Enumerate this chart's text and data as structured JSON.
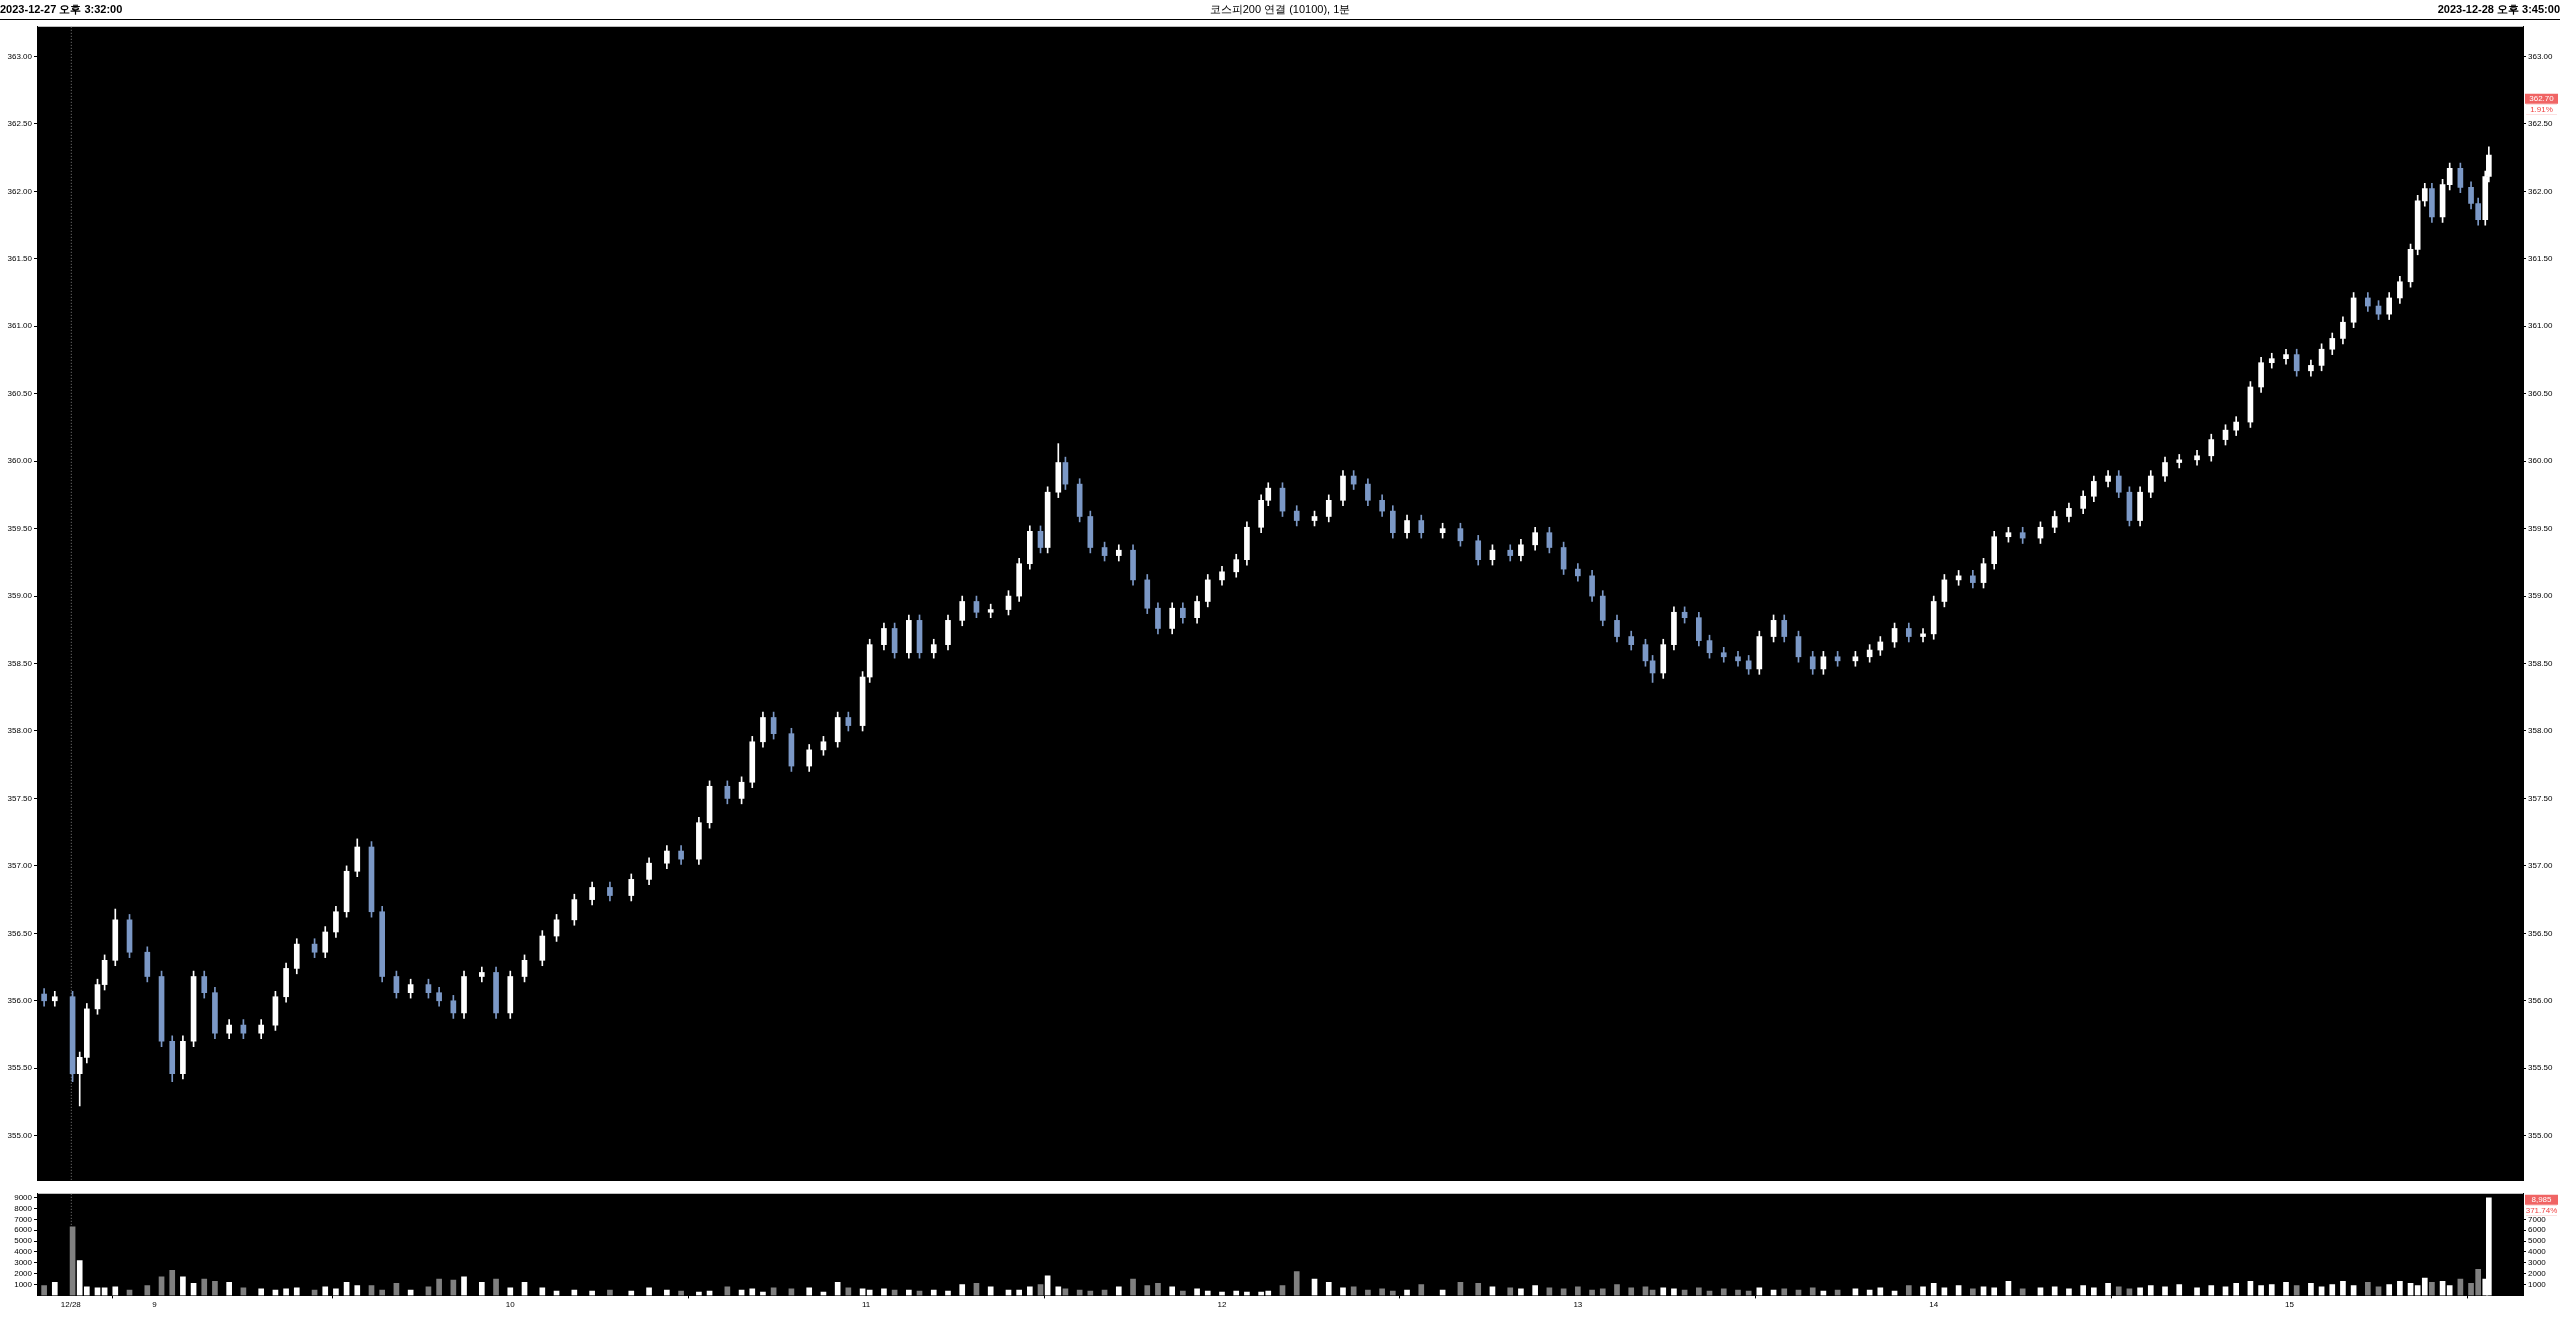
{
  "chart_data": [
    {
      "type": "candlestick",
      "title": "코스피200 연결 (10100), 1분",
      "annotations": [
        "2023-12-27 오후 3:32:00",
        "2023-12-28 오후 3:45:00",
        "362.70",
        "1.91%"
      ],
      "xlim": [
        8.67,
        15.656
      ],
      "ylim": [
        354.67,
        363.22
      ],
      "y2lim": [
        354.67,
        363.22
      ],
      "tick_labels": "y",
      "grid": false,
      "yticks": [
        {
          "value": 355,
          "label": "355.00"
        },
        {
          "value": 355.5,
          "label": "355.50"
        },
        {
          "value": 356,
          "label": "356.00"
        },
        {
          "value": 356.5,
          "label": "356.50"
        },
        {
          "value": 357,
          "label": "357.00"
        },
        {
          "value": 357.5,
          "label": "357.50"
        },
        {
          "value": 358,
          "label": "358.00"
        },
        {
          "value": 358.5,
          "label": "358.50"
        },
        {
          "value": 359,
          "label": "359.00"
        },
        {
          "value": 359.5,
          "label": "359.50"
        },
        {
          "value": 360,
          "label": "360.00"
        },
        {
          "value": 360.5,
          "label": "360.50"
        },
        {
          "value": 361,
          "label": "361.00"
        },
        {
          "value": 361.5,
          "label": "361.50"
        },
        {
          "value": 362,
          "label": "362.00"
        },
        {
          "value": 362.5,
          "label": "362.50"
        },
        {
          "value": 363,
          "label": "363.00"
        }
      ],
      "y2ticks": [
        {
          "value": 355,
          "label": "355.00"
        },
        {
          "value": 355.5,
          "label": "355.50"
        },
        {
          "value": 356,
          "label": "356.00"
        },
        {
          "value": 356.5,
          "label": "356.50"
        },
        {
          "value": 357,
          "label": "357.00"
        },
        {
          "value": 357.5,
          "label": "357.50"
        },
        {
          "value": 358,
          "label": "358.00"
        },
        {
          "value": 358.5,
          "label": "358.50"
        },
        {
          "value": 359,
          "label": "359.00"
        },
        {
          "value": 359.5,
          "label": "359.50"
        },
        {
          "value": 360,
          "label": "360.00"
        },
        {
          "value": 360.5,
          "label": "360.50"
        },
        {
          "value": 361,
          "label": "361.00"
        },
        {
          "value": 361.5,
          "label": "361.50"
        },
        {
          "value": 362,
          "label": "362.00"
        },
        {
          "value": 362.5,
          "label": "362.50"
        },
        {
          "value": 363,
          "label": "363.00"
        }
      ],
      "ref_lines": [
        {
          "axis": "x",
          "value": 8.765,
          "line_style": "dotted",
          "color": "#808080"
        }
      ],
      "x": [
        8.69,
        8.72,
        8.77,
        8.79,
        8.81,
        8.84,
        8.86,
        8.89,
        8.93,
        8.98,
        9.02,
        9.05,
        9.08,
        9.11,
        9.14,
        9.17,
        9.21,
        9.25,
        9.3,
        9.34,
        9.37,
        9.4,
        9.45,
        9.48,
        9.51,
        9.54,
        9.57,
        9.61,
        9.64,
        9.68,
        9.72,
        9.77,
        9.8,
        9.84,
        9.87,
        9.92,
        9.96,
        10.0,
        10.04,
        10.09,
        10.13,
        10.18,
        10.23,
        10.28,
        10.34,
        10.39,
        10.44,
        10.48,
        10.53,
        10.56,
        10.61,
        10.65,
        10.68,
        10.71,
        10.74,
        10.79,
        10.84,
        10.88,
        10.92,
        10.95,
        10.99,
        11.01,
        11.05,
        11.08,
        11.12,
        11.15,
        11.19,
        11.23,
        11.27,
        11.31,
        11.35,
        11.4,
        11.43,
        11.46,
        11.49,
        11.51,
        11.54,
        11.56,
        11.6,
        11.63,
        11.67,
        11.71,
        11.75,
        11.79,
        11.82,
        11.86,
        11.89,
        11.93,
        11.96,
        12.0,
        12.04,
        12.07,
        12.11,
        12.13,
        12.17,
        12.21,
        12.26,
        12.3,
        12.34,
        12.37,
        12.41,
        12.45,
        12.48,
        12.52,
        12.56,
        12.62,
        12.67,
        12.72,
        12.76,
        12.81,
        12.84,
        12.88,
        12.92,
        12.96,
        13.0,
        13.04,
        13.07,
        13.11,
        13.15,
        13.19,
        13.21,
        13.24,
        13.27,
        13.3,
        13.34,
        13.37,
        13.41,
        13.45,
        13.48,
        13.51,
        13.55,
        13.58,
        13.62,
        13.66,
        13.69,
        13.73,
        13.78,
        13.82,
        13.85,
        13.89,
        13.93,
        13.97,
        14.0,
        14.03,
        14.07,
        14.11,
        14.14,
        14.17,
        14.21,
        14.25,
        14.3,
        14.34,
        14.38,
        14.42,
        14.45,
        14.49,
        14.52,
        14.55,
        14.58,
        14.61,
        14.65,
        14.69,
        14.74,
        14.78,
        14.82,
        14.85,
        14.89,
        14.92,
        14.95,
        14.99,
        15.02,
        15.06,
        15.09,
        15.12,
        15.15,
        15.18,
        15.22,
        15.25,
        15.28,
        15.31,
        15.34,
        15.36,
        15.38,
        15.4,
        15.43,
        15.45,
        15.48,
        15.51,
        15.53,
        15.55,
        15.56
      ],
      "ohlc": [
        [
          356.05,
          356.09,
          355.96,
          356.0
        ],
        [
          356.0,
          356.07,
          355.96,
          356.03
        ],
        [
          356.03,
          356.07,
          355.4,
          355.46
        ],
        [
          355.46,
          355.62,
          355.22,
          355.58
        ],
        [
          355.58,
          355.98,
          355.54,
          355.94
        ],
        [
          355.94,
          356.16,
          355.9,
          356.12
        ],
        [
          356.12,
          356.34,
          356.08,
          356.3
        ],
        [
          356.3,
          356.68,
          356.26,
          356.6
        ],
        [
          356.6,
          356.64,
          356.32,
          356.36
        ],
        [
          356.36,
          356.4,
          356.14,
          356.18
        ],
        [
          356.18,
          356.22,
          355.66,
          355.7
        ],
        [
          355.7,
          355.74,
          355.4,
          355.46
        ],
        [
          355.46,
          355.74,
          355.42,
          355.7
        ],
        [
          355.7,
          356.22,
          355.66,
          356.18
        ],
        [
          356.18,
          356.22,
          356.02,
          356.06
        ],
        [
          356.06,
          356.1,
          355.72,
          355.76
        ],
        [
          355.76,
          355.86,
          355.72,
          355.82
        ],
        [
          355.82,
          355.86,
          355.72,
          355.76
        ],
        [
          355.76,
          355.86,
          355.72,
          355.82
        ],
        [
          355.82,
          356.07,
          355.78,
          356.03
        ],
        [
          356.03,
          356.28,
          355.99,
          356.24
        ],
        [
          356.24,
          356.46,
          356.2,
          356.42
        ],
        [
          356.42,
          356.46,
          356.32,
          356.36
        ],
        [
          356.36,
          356.55,
          356.32,
          356.51
        ],
        [
          356.51,
          356.7,
          356.47,
          356.66
        ],
        [
          356.66,
          357.0,
          356.62,
          356.96
        ],
        [
          356.96,
          357.2,
          356.92,
          357.14
        ],
        [
          357.14,
          357.18,
          356.62,
          356.66
        ],
        [
          356.66,
          356.7,
          356.14,
          356.18
        ],
        [
          356.18,
          356.22,
          356.02,
          356.06
        ],
        [
          356.06,
          356.16,
          356.02,
          356.12
        ],
        [
          356.12,
          356.16,
          356.02,
          356.06
        ],
        [
          356.06,
          356.1,
          355.96,
          356.0
        ],
        [
          356.0,
          356.04,
          355.87,
          355.91
        ],
        [
          355.91,
          356.22,
          355.87,
          356.18
        ],
        [
          356.18,
          356.25,
          356.14,
          356.21
        ],
        [
          356.21,
          356.25,
          355.87,
          355.91
        ],
        [
          355.91,
          356.22,
          355.87,
          356.18
        ],
        [
          356.18,
          356.34,
          356.14,
          356.3
        ],
        [
          356.3,
          356.52,
          356.26,
          356.48
        ],
        [
          356.48,
          356.64,
          356.44,
          356.6
        ],
        [
          356.6,
          356.79,
          356.56,
          356.75
        ],
        [
          356.75,
          356.88,
          356.71,
          356.84
        ],
        [
          356.84,
          356.88,
          356.74,
          356.78
        ],
        [
          356.78,
          356.94,
          356.74,
          356.9
        ],
        [
          356.9,
          357.06,
          356.86,
          357.02
        ],
        [
          357.02,
          357.15,
          356.98,
          357.11
        ],
        [
          357.11,
          357.15,
          357.01,
          357.05
        ],
        [
          357.05,
          357.36,
          357.01,
          357.32
        ],
        [
          357.32,
          357.63,
          357.28,
          357.59
        ],
        [
          357.59,
          357.63,
          357.46,
          357.5
        ],
        [
          357.5,
          357.66,
          357.46,
          357.62
        ],
        [
          357.62,
          357.96,
          357.58,
          357.92
        ],
        [
          357.92,
          358.14,
          357.88,
          358.1
        ],
        [
          358.1,
          358.14,
          357.94,
          357.98
        ],
        [
          357.98,
          358.02,
          357.7,
          357.74
        ],
        [
          357.74,
          357.9,
          357.7,
          357.86
        ],
        [
          357.86,
          357.96,
          357.82,
          357.92
        ],
        [
          357.92,
          358.14,
          357.88,
          358.1
        ],
        [
          358.1,
          358.14,
          358.0,
          358.04
        ],
        [
          358.04,
          358.44,
          358.0,
          358.4
        ],
        [
          358.4,
          358.68,
          358.36,
          358.64
        ],
        [
          358.64,
          358.8,
          358.6,
          358.76
        ],
        [
          358.76,
          358.8,
          358.54,
          358.58
        ],
        [
          358.58,
          358.86,
          358.54,
          358.82
        ],
        [
          358.82,
          358.86,
          358.54,
          358.58
        ],
        [
          358.58,
          358.68,
          358.54,
          358.64
        ],
        [
          358.64,
          358.86,
          358.6,
          358.82
        ],
        [
          358.82,
          359.0,
          358.78,
          358.96
        ],
        [
          358.96,
          359.0,
          358.84,
          358.88
        ],
        [
          358.88,
          358.94,
          358.84,
          358.9
        ],
        [
          358.9,
          359.04,
          358.86,
          359.0
        ],
        [
          359.0,
          359.28,
          358.96,
          359.24
        ],
        [
          359.24,
          359.52,
          359.2,
          359.48
        ],
        [
          359.48,
          359.52,
          359.32,
          359.36
        ],
        [
          359.36,
          359.81,
          359.32,
          359.77
        ],
        [
          359.77,
          360.13,
          359.73,
          359.99
        ],
        [
          359.99,
          360.03,
          359.79,
          359.83
        ],
        [
          359.83,
          359.87,
          359.55,
          359.59
        ],
        [
          359.59,
          359.63,
          359.32,
          359.36
        ],
        [
          359.36,
          359.4,
          359.26,
          359.3
        ],
        [
          359.3,
          359.38,
          359.26,
          359.34
        ],
        [
          359.34,
          359.38,
          359.08,
          359.12
        ],
        [
          359.12,
          359.16,
          358.87,
          358.91
        ],
        [
          358.91,
          358.95,
          358.72,
          358.76
        ],
        [
          358.76,
          358.95,
          358.72,
          358.91
        ],
        [
          358.91,
          358.95,
          358.8,
          358.84
        ],
        [
          358.84,
          359.0,
          358.8,
          358.96
        ],
        [
          358.96,
          359.16,
          358.92,
          359.12
        ],
        [
          359.12,
          359.22,
          359.08,
          359.18
        ],
        [
          359.18,
          359.31,
          359.14,
          359.27
        ],
        [
          359.27,
          359.55,
          359.23,
          359.51
        ],
        [
          359.51,
          359.75,
          359.47,
          359.71
        ],
        [
          359.71,
          359.84,
          359.67,
          359.8
        ],
        [
          359.8,
          359.84,
          359.59,
          359.63
        ],
        [
          359.63,
          359.67,
          359.52,
          359.56
        ],
        [
          359.56,
          359.63,
          359.52,
          359.59
        ],
        [
          359.59,
          359.75,
          359.55,
          359.71
        ],
        [
          359.71,
          359.93,
          359.67,
          359.89
        ],
        [
          359.89,
          359.93,
          359.79,
          359.83
        ],
        [
          359.83,
          359.87,
          359.67,
          359.71
        ],
        [
          359.71,
          359.75,
          359.59,
          359.63
        ],
        [
          359.63,
          359.67,
          359.43,
          359.47
        ],
        [
          359.47,
          359.6,
          359.43,
          359.56
        ],
        [
          359.56,
          359.6,
          359.43,
          359.47
        ],
        [
          359.47,
          359.54,
          359.43,
          359.5
        ],
        [
          359.5,
          359.54,
          359.37,
          359.41
        ],
        [
          359.41,
          359.45,
          359.23,
          359.27
        ],
        [
          359.27,
          359.38,
          359.23,
          359.34
        ],
        [
          359.34,
          359.38,
          359.26,
          359.3
        ],
        [
          359.3,
          359.42,
          359.26,
          359.38
        ],
        [
          359.38,
          359.51,
          359.34,
          359.47
        ],
        [
          359.47,
          359.51,
          359.32,
          359.36
        ],
        [
          359.36,
          359.4,
          359.16,
          359.2
        ],
        [
          359.2,
          359.24,
          359.11,
          359.15
        ],
        [
          359.15,
          359.19,
          358.96,
          359.0
        ],
        [
          359.0,
          359.04,
          358.78,
          358.82
        ],
        [
          358.82,
          358.86,
          358.66,
          358.7
        ],
        [
          358.7,
          358.74,
          358.6,
          358.64
        ],
        [
          358.64,
          358.68,
          358.48,
          358.52
        ],
        [
          358.52,
          358.56,
          358.36,
          358.43
        ],
        [
          358.43,
          358.68,
          358.39,
          358.64
        ],
        [
          358.64,
          358.92,
          358.6,
          358.88
        ],
        [
          358.88,
          358.92,
          358.8,
          358.84
        ],
        [
          358.84,
          358.88,
          358.63,
          358.67
        ],
        [
          358.67,
          358.71,
          358.54,
          358.58
        ],
        [
          358.58,
          358.62,
          358.51,
          358.55
        ],
        [
          358.55,
          358.59,
          358.48,
          358.52
        ],
        [
          358.52,
          358.56,
          358.42,
          358.46
        ],
        [
          358.46,
          358.74,
          358.42,
          358.7
        ],
        [
          358.7,
          358.86,
          358.66,
          358.82
        ],
        [
          358.82,
          358.86,
          358.66,
          358.7
        ],
        [
          358.7,
          358.74,
          358.51,
          358.55
        ],
        [
          358.55,
          358.59,
          358.42,
          358.46
        ],
        [
          358.46,
          358.59,
          358.42,
          358.55
        ],
        [
          358.55,
          358.59,
          358.48,
          358.52
        ],
        [
          358.52,
          358.59,
          358.48,
          358.55
        ],
        [
          358.55,
          358.64,
          358.51,
          358.6
        ],
        [
          358.6,
          358.7,
          358.56,
          358.66
        ],
        [
          358.66,
          358.8,
          358.62,
          358.76
        ],
        [
          358.76,
          358.8,
          358.66,
          358.7
        ],
        [
          358.7,
          358.76,
          358.66,
          358.72
        ],
        [
          358.72,
          359.0,
          358.68,
          358.96
        ],
        [
          358.96,
          359.16,
          358.92,
          359.12
        ],
        [
          359.12,
          359.19,
          359.08,
          359.15
        ],
        [
          359.15,
          359.19,
          359.06,
          359.1
        ],
        [
          359.1,
          359.28,
          359.06,
          359.24
        ],
        [
          359.24,
          359.48,
          359.2,
          359.44
        ],
        [
          359.44,
          359.51,
          359.4,
          359.47
        ],
        [
          359.47,
          359.51,
          359.39,
          359.43
        ],
        [
          359.43,
          359.55,
          359.39,
          359.51
        ],
        [
          359.51,
          359.63,
          359.47,
          359.59
        ],
        [
          359.59,
          359.69,
          359.55,
          359.65
        ],
        [
          359.65,
          359.78,
          359.61,
          359.74
        ],
        [
          359.74,
          359.89,
          359.7,
          359.85
        ],
        [
          359.85,
          359.93,
          359.81,
          359.89
        ],
        [
          359.89,
          359.93,
          359.73,
          359.77
        ],
        [
          359.77,
          359.81,
          359.52,
          359.56
        ],
        [
          359.56,
          359.81,
          359.52,
          359.77
        ],
        [
          359.77,
          359.93,
          359.73,
          359.89
        ],
        [
          359.89,
          360.03,
          359.85,
          359.99
        ],
        [
          359.99,
          360.05,
          359.95,
          360.01
        ],
        [
          360.01,
          360.08,
          359.97,
          360.04
        ],
        [
          360.04,
          360.2,
          360.0,
          360.16
        ],
        [
          360.16,
          360.27,
          360.12,
          360.23
        ],
        [
          360.23,
          360.33,
          360.19,
          360.29
        ],
        [
          360.29,
          360.59,
          360.25,
          360.55
        ],
        [
          360.55,
          360.77,
          360.51,
          360.73
        ],
        [
          360.73,
          360.8,
          360.69,
          360.76
        ],
        [
          360.76,
          360.83,
          360.72,
          360.79
        ],
        [
          360.79,
          360.83,
          360.63,
          360.67
        ],
        [
          360.67,
          360.75,
          360.63,
          360.71
        ],
        [
          360.71,
          360.87,
          360.67,
          360.83
        ],
        [
          360.83,
          360.95,
          360.79,
          360.91
        ],
        [
          360.91,
          361.07,
          360.87,
          361.03
        ],
        [
          361.03,
          361.25,
          360.99,
          361.21
        ],
        [
          361.21,
          361.25,
          361.11,
          361.15
        ],
        [
          361.15,
          361.19,
          361.05,
          361.09
        ],
        [
          361.09,
          361.25,
          361.05,
          361.21
        ],
        [
          361.21,
          361.37,
          361.17,
          361.33
        ],
        [
          361.33,
          361.61,
          361.29,
          361.57
        ],
        [
          361.57,
          361.97,
          361.53,
          361.93
        ],
        [
          361.93,
          362.06,
          361.89,
          362.02
        ],
        [
          362.02,
          362.06,
          361.77,
          361.81
        ],
        [
          361.81,
          362.09,
          361.77,
          362.05
        ],
        [
          362.05,
          362.21,
          362.01,
          362.17
        ],
        [
          362.17,
          362.21,
          361.99,
          362.03
        ],
        [
          362.03,
          362.07,
          361.87,
          361.91
        ],
        [
          361.91,
          361.95,
          361.75,
          361.79
        ],
        [
          361.79,
          362.15,
          361.75,
          362.11
        ],
        [
          362.11,
          362.33,
          362.07,
          362.27
        ]
      ],
      "colors": [
        "#7b98c6",
        "#ffffff",
        "#7b98c6",
        "#ffffff",
        "#ffffff",
        "#ffffff",
        "#ffffff",
        "#ffffff",
        "#7b98c6",
        "#7b98c6",
        "#7b98c6",
        "#7b98c6",
        "#ffffff",
        "#ffffff",
        "#7b98c6",
        "#7b98c6",
        "#ffffff",
        "#7b98c6",
        "#ffffff",
        "#ffffff",
        "#ffffff",
        "#ffffff",
        "#7b98c6",
        "#ffffff",
        "#ffffff",
        "#ffffff",
        "#ffffff",
        "#7b98c6",
        "#7b98c6",
        "#7b98c6",
        "#ffffff",
        "#7b98c6",
        "#7b98c6",
        "#7b98c6",
        "#ffffff",
        "#ffffff",
        "#7b98c6",
        "#ffffff",
        "#ffffff",
        "#ffffff",
        "#ffffff",
        "#ffffff",
        "#ffffff",
        "#7b98c6",
        "#ffffff",
        "#ffffff",
        "#ffffff",
        "#7b98c6",
        "#ffffff",
        "#ffffff",
        "#7b98c6",
        "#ffffff",
        "#ffffff",
        "#ffffff",
        "#7b98c6",
        "#7b98c6",
        "#ffffff",
        "#ffffff",
        "#ffffff",
        "#7b98c6",
        "#ffffff",
        "#ffffff",
        "#ffffff",
        "#7b98c6",
        "#ffffff",
        "#7b98c6",
        "#ffffff",
        "#ffffff",
        "#ffffff",
        "#7b98c6",
        "#ffffff",
        "#ffffff",
        "#ffffff",
        "#ffffff",
        "#7b98c6",
        "#ffffff",
        "#ffffff",
        "#7b98c6",
        "#7b98c6",
        "#7b98c6",
        "#7b98c6",
        "#ffffff",
        "#7b98c6",
        "#7b98c6",
        "#7b98c6",
        "#ffffff",
        "#7b98c6",
        "#ffffff",
        "#ffffff",
        "#ffffff",
        "#ffffff",
        "#ffffff",
        "#ffffff",
        "#ffffff",
        "#7b98c6",
        "#7b98c6",
        "#ffffff",
        "#ffffff",
        "#ffffff",
        "#7b98c6",
        "#7b98c6",
        "#7b98c6",
        "#7b98c6",
        "#ffffff",
        "#7b98c6",
        "#ffffff",
        "#7b98c6",
        "#7b98c6",
        "#ffffff",
        "#7b98c6",
        "#ffffff",
        "#ffffff",
        "#7b98c6",
        "#7b98c6",
        "#7b98c6",
        "#7b98c6",
        "#7b98c6",
        "#7b98c6",
        "#7b98c6",
        "#7b98c6",
        "#7b98c6",
        "#ffffff",
        "#ffffff",
        "#7b98c6",
        "#7b98c6",
        "#7b98c6",
        "#7b98c6",
        "#7b98c6",
        "#7b98c6",
        "#ffffff",
        "#ffffff",
        "#7b98c6",
        "#7b98c6",
        "#7b98c6",
        "#ffffff",
        "#7b98c6",
        "#ffffff",
        "#ffffff",
        "#ffffff",
        "#ffffff",
        "#7b98c6",
        "#ffffff",
        "#ffffff",
        "#ffffff",
        "#ffffff",
        "#7b98c6",
        "#ffffff",
        "#ffffff",
        "#ffffff",
        "#7b98c6",
        "#ffffff",
        "#ffffff",
        "#ffffff",
        "#ffffff",
        "#ffffff",
        "#ffffff",
        "#7b98c6",
        "#7b98c6",
        "#ffffff",
        "#ffffff",
        "#ffffff",
        "#ffffff",
        "#ffffff",
        "#ffffff",
        "#ffffff",
        "#ffffff",
        "#ffffff",
        "#ffffff",
        "#ffffff",
        "#ffffff",
        "#7b98c6",
        "#ffffff",
        "#ffffff",
        "#ffffff",
        "#ffffff",
        "#ffffff",
        "#7b98c6",
        "#7b98c6",
        "#ffffff",
        "#ffffff",
        "#ffffff",
        "#ffffff",
        "#ffffff",
        "#7b98c6",
        "#ffffff",
        "#ffffff",
        "#7b98c6",
        "#7b98c6",
        "#7b98c6",
        "#ffffff",
        "#ffffff"
      ]
    },
    {
      "type": "bar",
      "annotations": [
        "8,985",
        "371.74%"
      ],
      "xlim": [
        8.67,
        15.656
      ],
      "xticks": [
        {
          "value": 8.765,
          "label": "12/28"
        },
        9,
        10,
        11,
        12,
        13,
        14,
        15
      ],
      "ylim": [
        0,
        9350
      ],
      "yticks": [
        1000,
        2000,
        3000,
        4000,
        5000,
        6000,
        7000,
        8000,
        9000
      ],
      "y2lim": [
        0,
        9350
      ],
      "y2ticks": [
        1000,
        2000,
        3000,
        4000,
        5000,
        6000,
        7000
      ],
      "grid": false,
      "ref_lines": [
        {
          "axis": "x",
          "value": 8.765,
          "line_style": "dotted",
          "color": "#808080"
        }
      ],
      "x": [
        8.69,
        8.72,
        8.77,
        8.79,
        8.81,
        8.84,
        8.86,
        8.89,
        8.93,
        8.98,
        9.02,
        9.05,
        9.08,
        9.11,
        9.14,
        9.17,
        9.21,
        9.25,
        9.3,
        9.34,
        9.37,
        9.4,
        9.45,
        9.48,
        9.51,
        9.54,
        9.57,
        9.61,
        9.64,
        9.68,
        9.72,
        9.77,
        9.8,
        9.84,
        9.87,
        9.92,
        9.96,
        10.0,
        10.04,
        10.09,
        10.13,
        10.18,
        10.23,
        10.28,
        10.34,
        10.39,
        10.44,
        10.48,
        10.53,
        10.56,
        10.61,
        10.65,
        10.68,
        10.71,
        10.74,
        10.79,
        10.84,
        10.88,
        10.92,
        10.95,
        10.99,
        11.01,
        11.05,
        11.08,
        11.12,
        11.15,
        11.19,
        11.23,
        11.27,
        11.31,
        11.35,
        11.4,
        11.43,
        11.46,
        11.49,
        11.51,
        11.54,
        11.56,
        11.6,
        11.63,
        11.67,
        11.71,
        11.75,
        11.79,
        11.82,
        11.86,
        11.89,
        11.93,
        11.96,
        12.0,
        12.04,
        12.07,
        12.11,
        12.13,
        12.17,
        12.21,
        12.26,
        12.3,
        12.34,
        12.37,
        12.41,
        12.45,
        12.48,
        12.52,
        12.56,
        12.62,
        12.67,
        12.72,
        12.76,
        12.81,
        12.84,
        12.88,
        12.92,
        12.96,
        13.0,
        13.04,
        13.07,
        13.11,
        13.15,
        13.19,
        13.21,
        13.24,
        13.27,
        13.3,
        13.34,
        13.37,
        13.41,
        13.45,
        13.48,
        13.51,
        13.55,
        13.58,
        13.62,
        13.66,
        13.69,
        13.73,
        13.78,
        13.82,
        13.85,
        13.89,
        13.93,
        13.97,
        14.0,
        14.03,
        14.07,
        14.11,
        14.14,
        14.17,
        14.21,
        14.25,
        14.3,
        14.34,
        14.38,
        14.42,
        14.45,
        14.49,
        14.52,
        14.55,
        14.58,
        14.61,
        14.65,
        14.69,
        14.74,
        14.78,
        14.82,
        14.85,
        14.89,
        14.92,
        14.95,
        14.99,
        15.02,
        15.06,
        15.09,
        15.12,
        15.15,
        15.18,
        15.22,
        15.25,
        15.28,
        15.31,
        15.34,
        15.36,
        15.38,
        15.4,
        15.43,
        15.45,
        15.48,
        15.51,
        15.53,
        15.55,
        15.56
      ],
      "values": [
        900,
        1200,
        6300,
        3200,
        800,
        700,
        700,
        800,
        500,
        900,
        1700,
        2300,
        1700,
        1100,
        1500,
        1300,
        1200,
        700,
        600,
        500,
        600,
        700,
        500,
        800,
        600,
        1200,
        900,
        900,
        500,
        1100,
        500,
        800,
        1500,
        1400,
        1700,
        1200,
        1500,
        700,
        1200,
        700,
        400,
        500,
        400,
        500,
        400,
        700,
        500,
        400,
        300,
        400,
        800,
        500,
        600,
        300,
        700,
        600,
        700,
        300,
        1200,
        700,
        600,
        500,
        600,
        500,
        500,
        400,
        500,
        400,
        1000,
        1100,
        800,
        500,
        500,
        800,
        1000,
        1800,
        800,
        600,
        500,
        400,
        500,
        800,
        1500,
        900,
        1100,
        800,
        400,
        600,
        400,
        300,
        400,
        300,
        300,
        400,
        900,
        2200,
        1500,
        1200,
        700,
        800,
        500,
        600,
        400,
        500,
        1000,
        500,
        1200,
        1100,
        800,
        700,
        600,
        900,
        700,
        600,
        800,
        500,
        600,
        1000,
        700,
        800,
        500,
        700,
        600,
        500,
        700,
        400,
        600,
        500,
        400,
        700,
        500,
        600,
        500,
        700,
        400,
        500,
        600,
        500,
        700,
        400,
        900,
        800,
        1100,
        700,
        900,
        600,
        800,
        700,
        1300,
        600,
        700,
        800,
        600,
        900,
        700,
        1100,
        800,
        600,
        700,
        900,
        800,
        1000,
        700,
        900,
        800,
        1100,
        1300,
        900,
        1000,
        1200,
        900,
        1100,
        800,
        1000,
        1300,
        900,
        1200,
        800,
        1000,
        1300,
        1100,
        900,
        1600,
        1200,
        1300,
        900,
        1500,
        1100,
        2400,
        1500,
        8985
      ],
      "colors": [
        "#808080",
        "#ffffff",
        "#808080",
        "#ffffff",
        "#ffffff",
        "#ffffff",
        "#ffffff",
        "#ffffff",
        "#808080",
        "#808080",
        "#808080",
        "#808080",
        "#ffffff",
        "#ffffff",
        "#808080",
        "#808080",
        "#ffffff",
        "#808080",
        "#ffffff",
        "#ffffff",
        "#ffffff",
        "#ffffff",
        "#808080",
        "#ffffff",
        "#ffffff",
        "#ffffff",
        "#ffffff",
        "#808080",
        "#808080",
        "#808080",
        "#ffffff",
        "#808080",
        "#808080",
        "#808080",
        "#ffffff",
        "#ffffff",
        "#808080",
        "#ffffff",
        "#ffffff",
        "#ffffff",
        "#ffffff",
        "#ffffff",
        "#ffffff",
        "#808080",
        "#ffffff",
        "#ffffff",
        "#ffffff",
        "#808080",
        "#ffffff",
        "#ffffff",
        "#808080",
        "#ffffff",
        "#ffffff",
        "#ffffff",
        "#808080",
        "#808080",
        "#ffffff",
        "#ffffff",
        "#ffffff",
        "#808080",
        "#ffffff",
        "#ffffff",
        "#ffffff",
        "#808080",
        "#ffffff",
        "#808080",
        "#ffffff",
        "#ffffff",
        "#ffffff",
        "#808080",
        "#ffffff",
        "#ffffff",
        "#ffffff",
        "#ffffff",
        "#808080",
        "#ffffff",
        "#ffffff",
        "#808080",
        "#808080",
        "#808080",
        "#808080",
        "#ffffff",
        "#808080",
        "#808080",
        "#808080",
        "#ffffff",
        "#808080",
        "#ffffff",
        "#ffffff",
        "#ffffff",
        "#ffffff",
        "#ffffff",
        "#ffffff",
        "#ffffff",
        "#808080",
        "#808080",
        "#ffffff",
        "#ffffff",
        "#ffffff",
        "#808080",
        "#808080",
        "#808080",
        "#808080",
        "#ffffff",
        "#808080",
        "#ffffff",
        "#808080",
        "#808080",
        "#ffffff",
        "#808080",
        "#ffffff",
        "#ffffff",
        "#808080",
        "#808080",
        "#808080",
        "#808080",
        "#808080",
        "#808080",
        "#808080",
        "#808080",
        "#808080",
        "#ffffff",
        "#ffffff",
        "#808080",
        "#808080",
        "#808080",
        "#808080",
        "#808080",
        "#808080",
        "#ffffff",
        "#ffffff",
        "#808080",
        "#808080",
        "#808080",
        "#ffffff",
        "#808080",
        "#ffffff",
        "#ffffff",
        "#ffffff",
        "#ffffff",
        "#808080",
        "#ffffff",
        "#ffffff",
        "#ffffff",
        "#ffffff",
        "#808080",
        "#ffffff",
        "#ffffff",
        "#ffffff",
        "#808080",
        "#ffffff",
        "#ffffff",
        "#ffffff",
        "#ffffff",
        "#ffffff",
        "#ffffff",
        "#808080",
        "#808080",
        "#ffffff",
        "#ffffff",
        "#ffffff",
        "#ffffff",
        "#ffffff",
        "#ffffff",
        "#ffffff",
        "#ffffff",
        "#ffffff",
        "#ffffff",
        "#ffffff",
        "#ffffff",
        "#808080",
        "#ffffff",
        "#ffffff",
        "#ffffff",
        "#ffffff",
        "#ffffff",
        "#808080",
        "#808080",
        "#ffffff",
        "#ffffff",
        "#ffffff",
        "#ffffff",
        "#ffffff",
        "#808080",
        "#ffffff",
        "#ffffff",
        "#808080",
        "#808080",
        "#808080",
        "#ffffff",
        "#ffffff"
      ]
    }
  ]
}
